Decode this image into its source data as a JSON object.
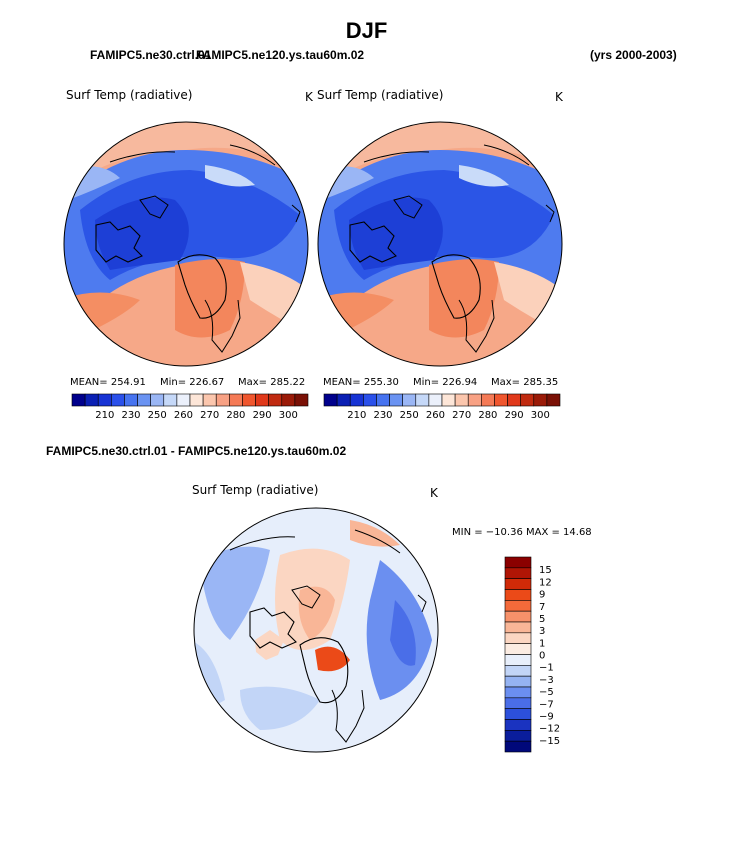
{
  "header": {
    "season": "DJF",
    "case_a": "FAMIPC5.ne30.ctrl.01",
    "case_b": "FAMIPC5.ne120.ys.tau60m.02",
    "years": "(yrs 2000-2003)"
  },
  "panels": [
    {
      "variable": "Surf Temp (radiative)",
      "units": "K",
      "mean_text": "MEAN= 254.91",
      "min_text": "Min= 226.67",
      "max_text": "Max= 285.22"
    },
    {
      "variable": "Surf Temp (radiative)",
      "units": "K",
      "mean_text": "MEAN= 255.30",
      "min_text": "Min= 226.94",
      "max_text": "Max= 285.35"
    }
  ],
  "abs_colorbar": {
    "labels": [
      "210",
      "230",
      "250",
      "260",
      "270",
      "280",
      "290",
      "300"
    ],
    "colors": [
      "#00008c",
      "#0a1fb4",
      "#1733d4",
      "#2a50ea",
      "#4673f0",
      "#6a93f2",
      "#9ab6f5",
      "#c5d8f8",
      "#ebf0fb",
      "#fde6d8",
      "#fbc6ad",
      "#f8a184",
      "#f57a56",
      "#f0562e",
      "#e0381a",
      "#c02a10",
      "#9a1a08",
      "#7a1005"
    ]
  },
  "difference": {
    "title": "FAMIPC5.ne30.ctrl.01 - FAMIPC5.ne120.ys.tau60m.02",
    "variable": "Surf Temp (radiative)",
    "units": "K",
    "minmax_text": "MIN = −10.36 MAX =   14.68",
    "colorbar": {
      "labels": [
        "15",
        "12",
        "9",
        "7",
        "5",
        "3",
        "1",
        "0",
        "−1",
        "−3",
        "−5",
        "−7",
        "−9",
        "−12",
        "−15"
      ],
      "colors": [
        "#8b0000",
        "#b01505",
        "#d02a08",
        "#eb4a18",
        "#f46a3a",
        "#f7916a",
        "#f9b697",
        "#fbd6c2",
        "#fbece2",
        "#e8effb",
        "#c2d5f7",
        "#95b3f2",
        "#6b8ff0",
        "#4a6ee8",
        "#2c50dc",
        "#1a33c0",
        "#0a1d9c",
        "#00087a"
      ]
    }
  }
}
